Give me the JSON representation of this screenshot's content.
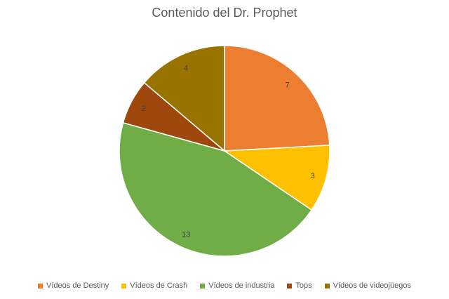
{
  "chart_data": {
    "type": "pie",
    "title": "Contenido del Dr. Prophet",
    "legend_position": "bottom",
    "slices": [
      {
        "label": "Vídeos de Destiny",
        "value": 7,
        "color": "#ED7D31"
      },
      {
        "label": "Vídeos de Crash",
        "value": 3,
        "color": "#FFC000"
      },
      {
        "label": "Vídeos de industria",
        "value": 13,
        "color": "#70AD47"
      },
      {
        "label": "Tops",
        "value": 2,
        "color": "#9E480E"
      },
      {
        "label": "Vídeos de videojüegos",
        "value": 4,
        "color": "#997300"
      }
    ]
  }
}
